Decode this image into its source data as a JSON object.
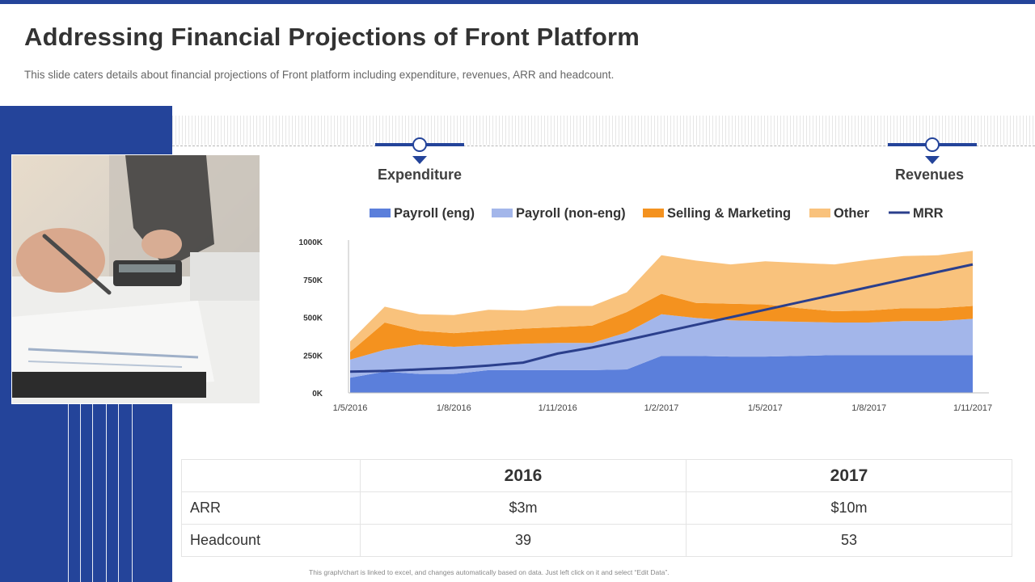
{
  "slide": {
    "title": "Addressing Financial Projections of Front Platform",
    "subtitle": "This slide caters details about financial projections of Front platform including expenditure, revenues, ARR and headcount.",
    "footnote": "This graph/chart is linked to excel, and changes automatically based on data. Just left click on it and select “Edit Data”.",
    "accent_color": "#24449a"
  },
  "sections": {
    "expenditure": "Expenditure",
    "revenues": "Revenues"
  },
  "chart_data": {
    "type": "area",
    "title": "",
    "xlabel": "",
    "ylabel": "",
    "ylim": [
      0,
      1000000
    ],
    "y_ticks": [
      "0K",
      "250K",
      "500K",
      "750K",
      "1000K"
    ],
    "x_tick_labels": [
      "1/5/2016",
      "1/8/2016",
      "1/11/2016",
      "1/2/2017",
      "1/5/2017",
      "1/8/2017",
      "1/11/2017"
    ],
    "x": [
      "1/5/2016",
      "1/6/2016",
      "1/7/2016",
      "1/8/2016",
      "1/9/2016",
      "1/10/2016",
      "1/11/2016",
      "1/12/2016",
      "1/1/2017",
      "1/2/2017",
      "1/3/2017",
      "1/4/2017",
      "1/5/2017",
      "1/6/2017",
      "1/7/2017",
      "1/8/2017",
      "1/9/2017",
      "1/10/2017",
      "1/11/2017"
    ],
    "stacked": true,
    "legend_position": "top",
    "series": [
      {
        "name": "Payroll (eng)",
        "color": "#5b7fdb",
        "values": [
          100000,
          140000,
          125000,
          125000,
          150000,
          150000,
          150000,
          150000,
          155000,
          245000,
          245000,
          240000,
          240000,
          245000,
          250000,
          250000,
          250000,
          250000,
          250000
        ]
      },
      {
        "name": "Payroll (non-eng)",
        "color": "#a3b6ea",
        "values": [
          120000,
          145000,
          195000,
          180000,
          165000,
          175000,
          180000,
          180000,
          245000,
          275000,
          250000,
          240000,
          235000,
          225000,
          215000,
          215000,
          225000,
          225000,
          240000
        ]
      },
      {
        "name": "Selling & Marketing",
        "color": "#f4921f",
        "values": [
          50000,
          180000,
          90000,
          90000,
          95000,
          100000,
          105000,
          115000,
          135000,
          135000,
          100000,
          110000,
          110000,
          90000,
          75000,
          80000,
          85000,
          85000,
          85000
        ]
      },
      {
        "name": "Other",
        "color": "#f9c27c",
        "values": [
          70000,
          105000,
          110000,
          120000,
          140000,
          120000,
          140000,
          130000,
          130000,
          255000,
          280000,
          260000,
          285000,
          300000,
          310000,
          335000,
          345000,
          350000,
          365000
        ]
      }
    ],
    "line_series": [
      {
        "name": "MRR",
        "color": "#2b3f8c",
        "values": [
          140000,
          145000,
          155000,
          165000,
          180000,
          200000,
          260000,
          300000,
          350000,
          400000,
          450000,
          500000,
          550000,
          600000,
          650000,
          700000,
          750000,
          800000,
          850000
        ]
      }
    ]
  },
  "table": {
    "headers": [
      "",
      "2016",
      "2017"
    ],
    "rows": [
      {
        "label": "ARR",
        "values": [
          "$3m",
          "$10m"
        ]
      },
      {
        "label": "Headcount",
        "values": [
          "39",
          "53"
        ]
      }
    ]
  }
}
